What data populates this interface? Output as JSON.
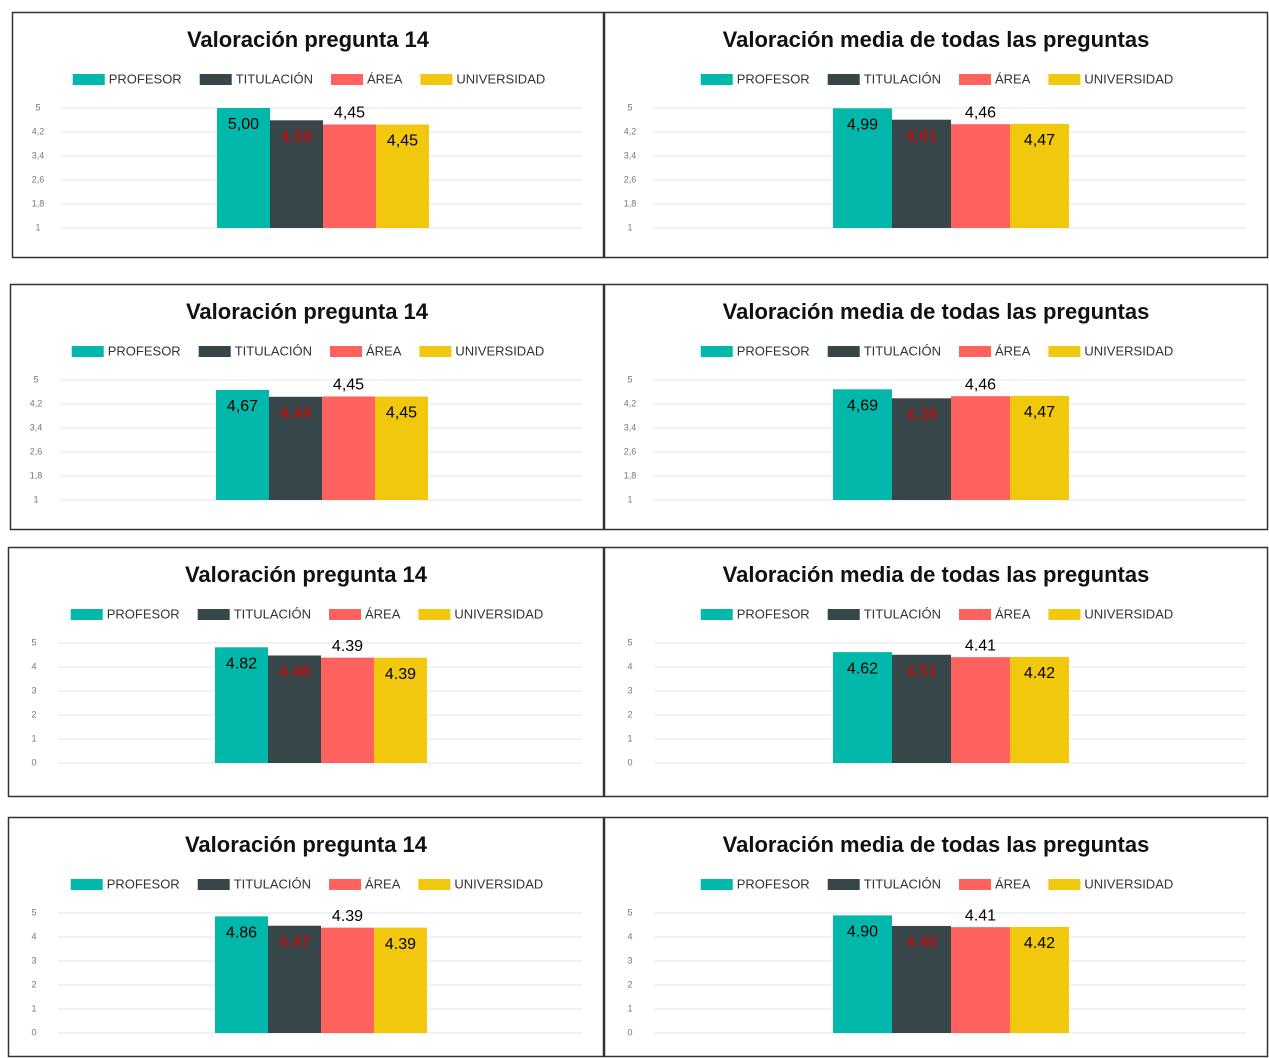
{
  "chart_data": [
    {
      "type": "bar",
      "title": "Valoración pregunta 14",
      "categories": [
        null
      ],
      "ylim": [
        1,
        5
      ],
      "yticks": [
        1,
        {
          "value": 1.8,
          "label": "1,8"
        },
        {
          "value": 2.6,
          "label": "2,6"
        },
        {
          "value": 3.4,
          "label": "3,4"
        },
        {
          "value": 4.2,
          "label": "4,2"
        },
        5
      ],
      "grid": true,
      "series": [
        {
          "name": "PROFESOR",
          "color": "#01b8aa",
          "label_color": "#000000",
          "values": [
            5.0
          ],
          "value_labels": [
            "5,00"
          ]
        },
        {
          "name": "TITULACIÓN",
          "color": "#374649",
          "label_color": "#e00000",
          "values": [
            4.59
          ],
          "value_labels": [
            "4,59"
          ]
        },
        {
          "name": "ÁREA",
          "color": "#fd625e",
          "label_color": "#000000",
          "values": [
            4.45
          ],
          "value_labels": [
            "4,45"
          ]
        },
        {
          "name": "UNIVERSIDAD",
          "color": "#f2c80f",
          "label_color": "#000000",
          "values": [
            4.45
          ],
          "value_labels": [
            "4,45"
          ]
        }
      ]
    },
    {
      "type": "bar",
      "title": "Valoración media de todas las preguntas",
      "categories": [
        null
      ],
      "ylim": [
        1,
        5
      ],
      "yticks": [
        1,
        {
          "value": 1.8,
          "label": "1,8"
        },
        {
          "value": 2.6,
          "label": "2,6"
        },
        {
          "value": 3.4,
          "label": "3,4"
        },
        {
          "value": 4.2,
          "label": "4,2"
        },
        5
      ],
      "grid": true,
      "series": [
        {
          "name": "PROFESOR",
          "color": "#01b8aa",
          "label_color": "#000000",
          "values": [
            4.99
          ],
          "value_labels": [
            "4,99"
          ]
        },
        {
          "name": "TITULACIÓN",
          "color": "#374649",
          "label_color": "#e00000",
          "values": [
            4.61
          ],
          "value_labels": [
            "4,61"
          ]
        },
        {
          "name": "ÁREA",
          "color": "#fd625e",
          "label_color": "#000000",
          "values": [
            4.46
          ],
          "value_labels": [
            "4,46"
          ]
        },
        {
          "name": "UNIVERSIDAD",
          "color": "#f2c80f",
          "label_color": "#000000",
          "values": [
            4.47
          ],
          "value_labels": [
            "4,47"
          ]
        }
      ]
    },
    {
      "type": "bar",
      "title": "Valoración pregunta 14",
      "categories": [
        null
      ],
      "ylim": [
        1,
        5
      ],
      "yticks": [
        1,
        {
          "value": 1.8,
          "label": "1,8"
        },
        {
          "value": 2.6,
          "label": "2,6"
        },
        {
          "value": 3.4,
          "label": "3,4"
        },
        {
          "value": 4.2,
          "label": "4,2"
        },
        5
      ],
      "grid": true,
      "series": [
        {
          "name": "PROFESOR",
          "color": "#01b8aa",
          "label_color": "#000000",
          "values": [
            4.67
          ],
          "value_labels": [
            "4,67"
          ]
        },
        {
          "name": "TITULACIÓN",
          "color": "#374649",
          "label_color": "#e00000",
          "values": [
            4.44
          ],
          "value_labels": [
            "4,44"
          ]
        },
        {
          "name": "ÁREA",
          "color": "#fd625e",
          "label_color": "#000000",
          "values": [
            4.45
          ],
          "value_labels": [
            "4,45"
          ]
        },
        {
          "name": "UNIVERSIDAD",
          "color": "#f2c80f",
          "label_color": "#000000",
          "values": [
            4.45
          ],
          "value_labels": [
            "4,45"
          ]
        }
      ]
    },
    {
      "type": "bar",
      "title": "Valoración media de todas las preguntas",
      "categories": [
        null
      ],
      "ylim": [
        1,
        5
      ],
      "yticks": [
        1,
        {
          "value": 1.8,
          "label": "1,8"
        },
        {
          "value": 2.6,
          "label": "2,6"
        },
        {
          "value": 3.4,
          "label": "3,4"
        },
        {
          "value": 4.2,
          "label": "4,2"
        },
        5
      ],
      "grid": true,
      "series": [
        {
          "name": "PROFESOR",
          "color": "#01b8aa",
          "label_color": "#000000",
          "values": [
            4.69
          ],
          "value_labels": [
            "4,69"
          ]
        },
        {
          "name": "TITULACIÓN",
          "color": "#374649",
          "label_color": "#e00000",
          "values": [
            4.39
          ],
          "value_labels": [
            "4,39"
          ]
        },
        {
          "name": "ÁREA",
          "color": "#fd625e",
          "label_color": "#000000",
          "values": [
            4.46
          ],
          "value_labels": [
            "4,46"
          ]
        },
        {
          "name": "UNIVERSIDAD",
          "color": "#f2c80f",
          "label_color": "#000000",
          "values": [
            4.47
          ],
          "value_labels": [
            "4,47"
          ]
        }
      ]
    },
    {
      "type": "bar",
      "title": "Valoración pregunta 14",
      "categories": [
        null
      ],
      "ylim": [
        0,
        5
      ],
      "yticks": [
        0,
        1,
        2,
        3,
        4,
        5
      ],
      "grid": true,
      "series": [
        {
          "name": "PROFESOR",
          "color": "#01b8aa",
          "label_color": "#000000",
          "values": [
            4.82
          ],
          "value_labels": [
            "4.82"
          ]
        },
        {
          "name": "TITULACIÓN",
          "color": "#374649",
          "label_color": "#e00000",
          "values": [
            4.48
          ],
          "value_labels": [
            "4.48"
          ]
        },
        {
          "name": "ÁREA",
          "color": "#fd625e",
          "label_color": "#000000",
          "values": [
            4.39
          ],
          "value_labels": [
            "4.39"
          ]
        },
        {
          "name": "UNIVERSIDAD",
          "color": "#f2c80f",
          "label_color": "#000000",
          "values": [
            4.39
          ],
          "value_labels": [
            "4.39"
          ]
        }
      ]
    },
    {
      "type": "bar",
      "title": "Valoración media de todas las preguntas",
      "categories": [
        null
      ],
      "ylim": [
        0,
        5
      ],
      "yticks": [
        0,
        1,
        2,
        3,
        4,
        5
      ],
      "grid": true,
      "series": [
        {
          "name": "PROFESOR",
          "color": "#01b8aa",
          "label_color": "#000000",
          "values": [
            4.62
          ],
          "value_labels": [
            "4.62"
          ]
        },
        {
          "name": "TITULACIÓN",
          "color": "#374649",
          "label_color": "#e00000",
          "values": [
            4.51
          ],
          "value_labels": [
            "4.51"
          ]
        },
        {
          "name": "ÁREA",
          "color": "#fd625e",
          "label_color": "#000000",
          "values": [
            4.41
          ],
          "value_labels": [
            "4.41"
          ]
        },
        {
          "name": "UNIVERSIDAD",
          "color": "#f2c80f",
          "label_color": "#000000",
          "values": [
            4.42
          ],
          "value_labels": [
            "4.42"
          ]
        }
      ]
    },
    {
      "type": "bar",
      "title": "Valoración pregunta 14",
      "categories": [
        null
      ],
      "ylim": [
        0,
        5
      ],
      "yticks": [
        0,
        1,
        2,
        3,
        4,
        5
      ],
      "grid": true,
      "series": [
        {
          "name": "PROFESOR",
          "color": "#01b8aa",
          "label_color": "#000000",
          "values": [
            4.86
          ],
          "value_labels": [
            "4.86"
          ]
        },
        {
          "name": "TITULACIÓN",
          "color": "#374649",
          "label_color": "#e00000",
          "values": [
            4.47
          ],
          "value_labels": [
            "4.47"
          ]
        },
        {
          "name": "ÁREA",
          "color": "#fd625e",
          "label_color": "#000000",
          "values": [
            4.39
          ],
          "value_labels": [
            "4.39"
          ]
        },
        {
          "name": "UNIVERSIDAD",
          "color": "#f2c80f",
          "label_color": "#000000",
          "values": [
            4.39
          ],
          "value_labels": [
            "4.39"
          ]
        }
      ]
    },
    {
      "type": "bar",
      "title": "Valoración media de todas las preguntas",
      "categories": [
        null
      ],
      "ylim": [
        0,
        5
      ],
      "yticks": [
        0,
        1,
        2,
        3,
        4,
        5
      ],
      "grid": true,
      "series": [
        {
          "name": "PROFESOR",
          "color": "#01b8aa",
          "label_color": "#000000",
          "values": [
            4.9
          ],
          "value_labels": [
            "4.90"
          ]
        },
        {
          "name": "TITULACIÓN",
          "color": "#374649",
          "label_color": "#e00000",
          "values": [
            4.46
          ],
          "value_labels": [
            "4.46"
          ]
        },
        {
          "name": "ÁREA",
          "color": "#fd625e",
          "label_color": "#000000",
          "values": [
            4.41
          ],
          "value_labels": [
            "4.41"
          ]
        },
        {
          "name": "UNIVERSIDAD",
          "color": "#f2c80f",
          "label_color": "#000000",
          "values": [
            4.42
          ],
          "value_labels": [
            "4.42"
          ]
        }
      ]
    }
  ]
}
